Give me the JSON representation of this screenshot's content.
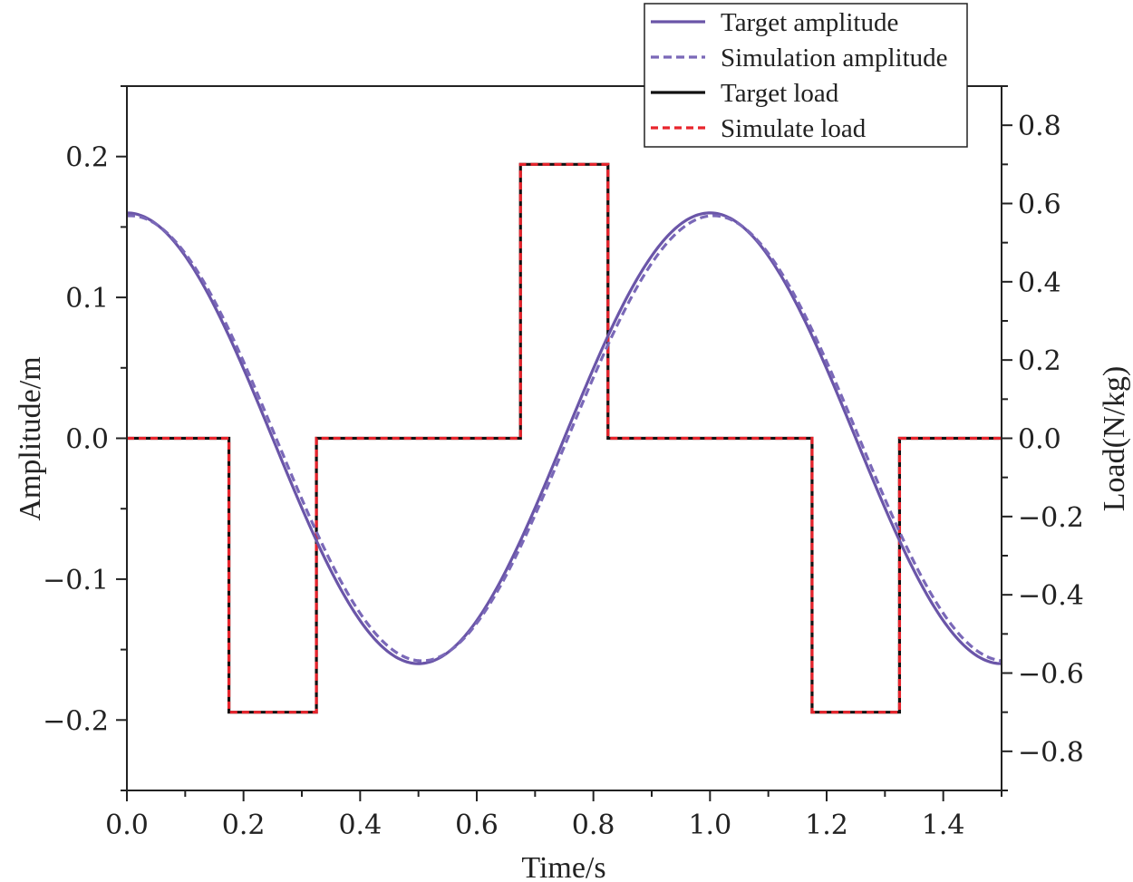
{
  "chart_data": {
    "type": "line",
    "xlabel": "Time/s",
    "ylabel_left": "Amplitude/m",
    "ylabel_right": "Load(N/kg)",
    "xlim": [
      0.0,
      1.5
    ],
    "ylim_left": [
      -0.25,
      0.25
    ],
    "ylim_right": [
      -0.9,
      0.9
    ],
    "x_ticks": [
      "0.0",
      "0.2",
      "0.4",
      "0.6",
      "0.8",
      "1.0",
      "1.2",
      "1.4"
    ],
    "x_tick_values": [
      0.0,
      0.2,
      0.4,
      0.6,
      0.8,
      1.0,
      1.2,
      1.4
    ],
    "y_left_ticks": [
      "0.2",
      "0.1",
      "0.0",
      "−0.1",
      "−0.2"
    ],
    "y_left_tick_values": [
      0.2,
      0.1,
      0.0,
      -0.1,
      -0.2
    ],
    "y_right_ticks": [
      "0.8",
      "0.6",
      "0.4",
      "0.2",
      "0.0",
      "−0.2",
      "−0.4",
      "−0.6",
      "−0.8"
    ],
    "y_right_tick_values": [
      0.8,
      0.6,
      0.4,
      0.2,
      0.0,
      -0.2,
      -0.4,
      -0.6,
      -0.8
    ],
    "grid": false,
    "legend_position": "top-right",
    "series": [
      {
        "name": "Target amplitude",
        "axis": "left",
        "style": "solid",
        "color": "#6a55a8",
        "x": [
          0.0,
          0.1,
          0.2,
          0.3,
          0.4,
          0.5,
          0.6,
          0.7,
          0.8,
          0.9,
          1.0,
          1.1,
          1.2,
          1.3,
          1.4,
          1.5
        ],
        "y": [
          0.16,
          0.1294,
          0.0494,
          -0.0494,
          -0.1294,
          -0.16,
          -0.1294,
          -0.0494,
          0.0494,
          0.1294,
          0.16,
          0.1294,
          0.0494,
          -0.0494,
          -0.1294,
          -0.16
        ]
      },
      {
        "name": "Simulation amplitude",
        "axis": "left",
        "style": "dashed",
        "color": "#7a68b8",
        "x": [
          0.0,
          0.1,
          0.2,
          0.3,
          0.4,
          0.5,
          0.6,
          0.7,
          0.8,
          0.9,
          1.0,
          1.1,
          1.2,
          1.3,
          1.4,
          1.5
        ],
        "y": [
          0.158,
          0.1305,
          0.0535,
          -0.0452,
          -0.1271,
          -0.158,
          -0.1305,
          -0.0535,
          0.0452,
          0.1271,
          0.158,
          0.1305,
          0.0535,
          -0.0452,
          -0.1271,
          -0.158
        ]
      },
      {
        "name": "Target load",
        "axis": "right",
        "style": "solid-step",
        "color": "#111111",
        "x": [
          0.0,
          0.175,
          0.175,
          0.325,
          0.325,
          0.675,
          0.675,
          0.825,
          0.825,
          1.175,
          1.175,
          1.325,
          1.325,
          1.5
        ],
        "y": [
          0.0,
          0.0,
          -0.7,
          -0.7,
          0.0,
          0.0,
          0.7,
          0.7,
          0.0,
          0.0,
          -0.7,
          -0.7,
          0.0,
          0.0
        ]
      },
      {
        "name": "Simulate load",
        "axis": "right",
        "style": "dashed-step",
        "color": "#e8242c",
        "x": [
          0.0,
          0.175,
          0.175,
          0.325,
          0.325,
          0.675,
          0.675,
          0.825,
          0.825,
          1.175,
          1.175,
          1.325,
          1.325,
          1.5
        ],
        "y": [
          0.0,
          0.0,
          -0.7,
          -0.7,
          0.0,
          0.0,
          0.7,
          0.7,
          0.0,
          0.0,
          -0.7,
          -0.7,
          0.0,
          0.0
        ]
      }
    ]
  }
}
